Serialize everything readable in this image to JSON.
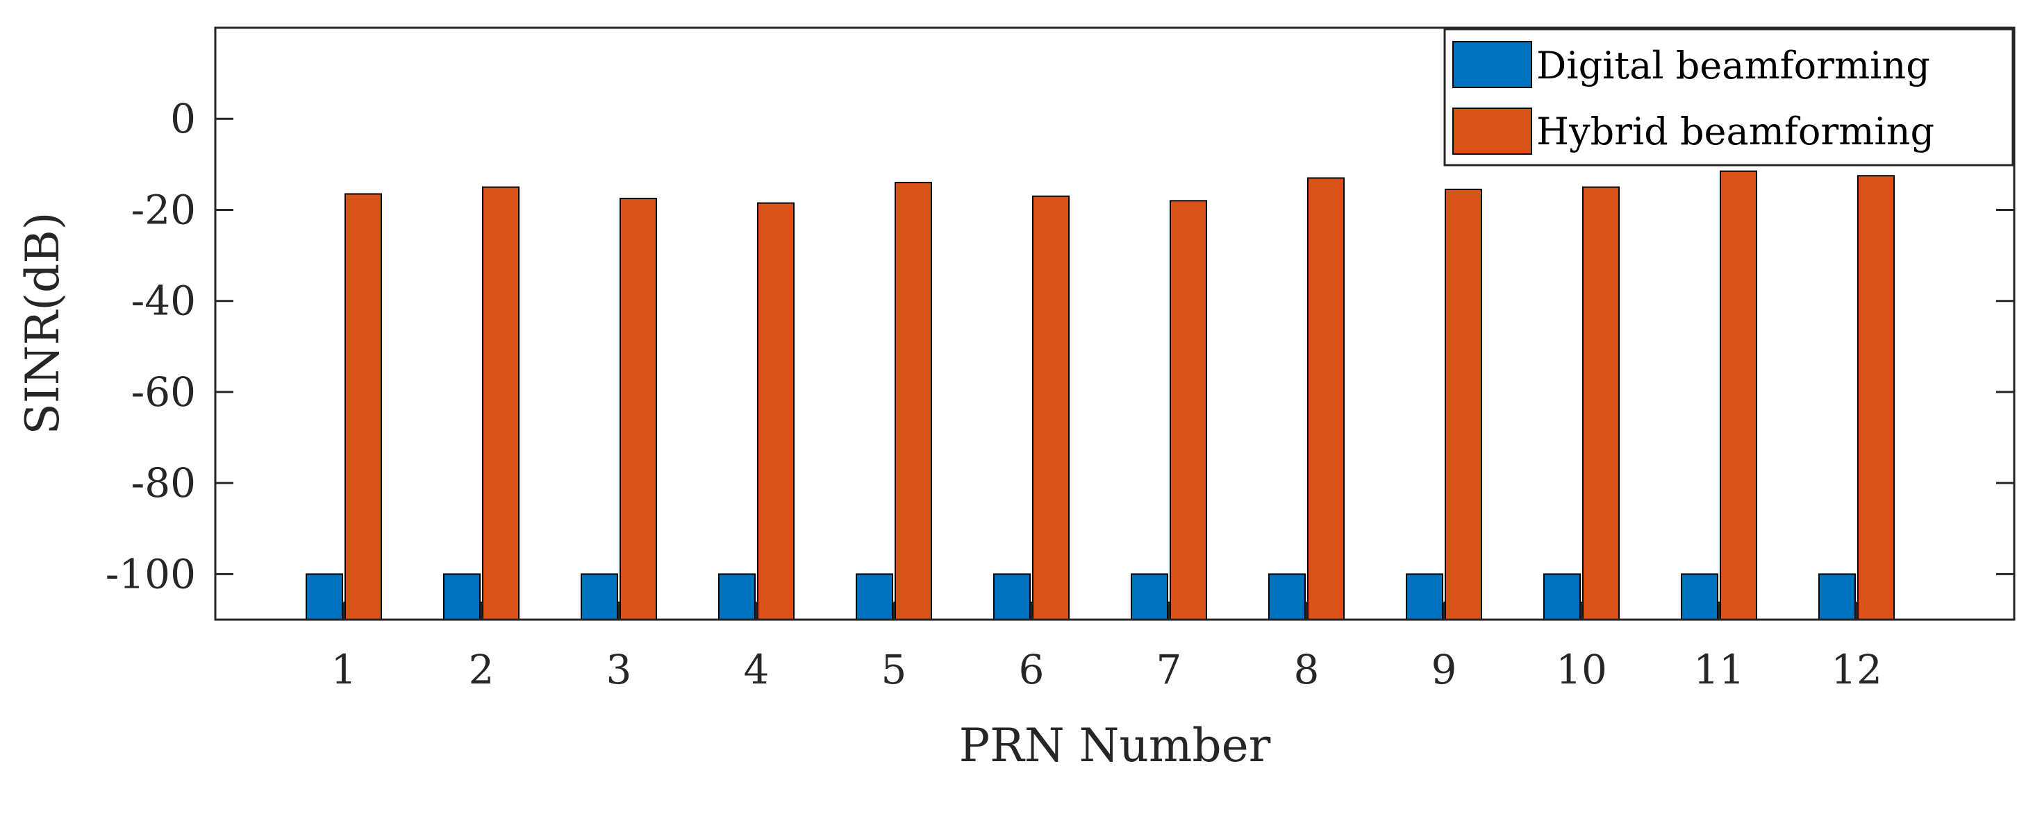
{
  "chart_data": {
    "type": "bar",
    "title": "",
    "xlabel": "PRN Number",
    "ylabel": "SINR(dB)",
    "categories": [
      "1",
      "2",
      "3",
      "4",
      "5",
      "6",
      "7",
      "8",
      "9",
      "10",
      "11",
      "12"
    ],
    "series": [
      {
        "name": "Digital beamforming",
        "color": "#0072BD",
        "values": [
          -100,
          -100,
          -100,
          -100,
          -100,
          -100,
          -100,
          -100,
          -100,
          -100,
          -100,
          -100
        ]
      },
      {
        "name": "Hybrid beamforming",
        "color": "#D95319",
        "values": [
          -16.5,
          -15,
          -17.5,
          -18.5,
          -14,
          -17,
          -18,
          -13,
          -15.5,
          -15,
          -11.5,
          -12.5
        ]
      }
    ],
    "ylim": [
      -110,
      20
    ],
    "yticks": [
      -100,
      -80,
      -60,
      -40,
      -20,
      0
    ],
    "ytick_labels": [
      "-100",
      "-80",
      "-60",
      "-40",
      "-20",
      "0"
    ],
    "grid": false,
    "legend_position": "top-right"
  }
}
